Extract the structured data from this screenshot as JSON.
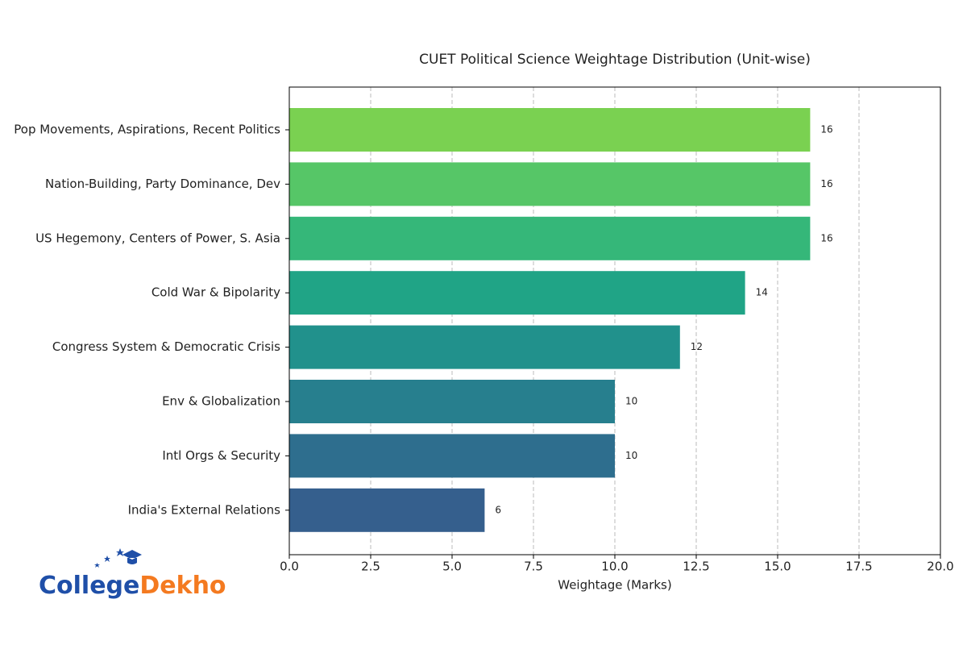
{
  "chart_data": {
    "type": "barh",
    "title": "CUET Political Science Weightage Distribution (Unit-wise)",
    "x_label": "Weightage (Marks)",
    "categories": [
      "Pop Movements, Aspirations, Recent Politics",
      "Nation-Building, Party Dominance, Dev",
      "US Hegemony, Centers of Power, S. Asia",
      "Cold War & Bipolarity",
      "Congress System & Democratic Crisis",
      "Env & Globalization",
      "Intl Orgs & Security",
      "India's External Relations"
    ],
    "values": [
      16,
      16,
      16,
      14,
      12,
      10,
      10,
      6
    ],
    "colors": [
      "#7ad151",
      "#56c667",
      "#35b779",
      "#20a486",
      "#21918c",
      "#277f8e",
      "#2e6e8e",
      "#355f8d"
    ],
    "xlim": [
      0,
      20
    ],
    "xticks": [
      {
        "value": 0,
        "label": "0.0"
      },
      2.5,
      {
        "value": 5,
        "label": "5.0"
      },
      7.5,
      {
        "value": 10,
        "label": "10.0"
      },
      12.5,
      {
        "value": 15,
        "label": "15.0"
      },
      17.5,
      {
        "value": 20,
        "label": "20.0"
      }
    ],
    "grid": true
  },
  "logo": {
    "part1": "College",
    "part2": "Dekho"
  }
}
